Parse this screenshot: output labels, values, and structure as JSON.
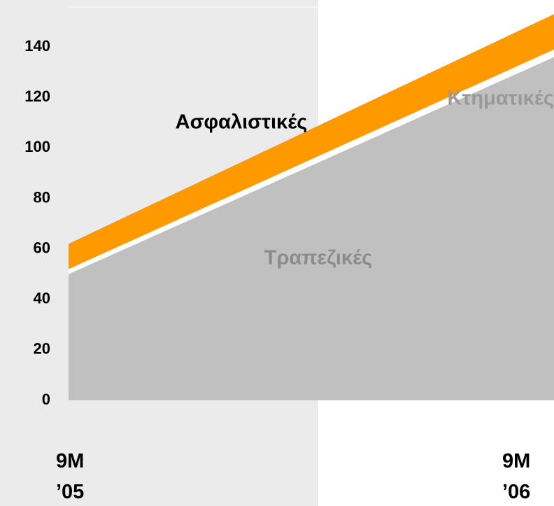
{
  "chart_data": {
    "type": "area",
    "categories": [
      "9M ’05",
      "9M ’06"
    ],
    "series": [
      {
        "name": "Τραπεζικές",
        "color": "#c0c0c0",
        "values": [
          50,
          136
        ]
      },
      {
        "name": "Κτηματικές",
        "color": "#ffffff",
        "values": [
          2,
          3
        ]
      },
      {
        "name": "Ασφαλιστικές",
        "color": "#ff9900",
        "values": [
          10,
          14
        ]
      }
    ],
    "ylim": [
      0,
      155
    ],
    "yticks": [
      0,
      20,
      40,
      60,
      80,
      100,
      120,
      140
    ],
    "stacked": true
  }
}
